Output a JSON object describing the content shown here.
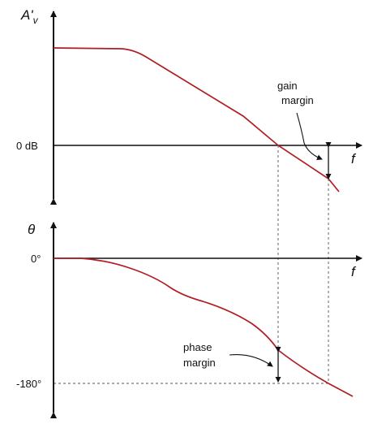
{
  "gain_plot": {
    "y_label": "A'",
    "y_label_sub": "v",
    "zero_label": "0 dB",
    "x_label": "f",
    "annotation": [
      "gain",
      "margin"
    ]
  },
  "phase_plot": {
    "y_label": "θ",
    "zero_label": "0°",
    "bottom_label": "-180°",
    "x_label": "f",
    "annotation": [
      "phase",
      "margin"
    ]
  },
  "colors": {
    "curve": "#b01e23",
    "axis": "#111111",
    "guide": "#555555"
  }
}
